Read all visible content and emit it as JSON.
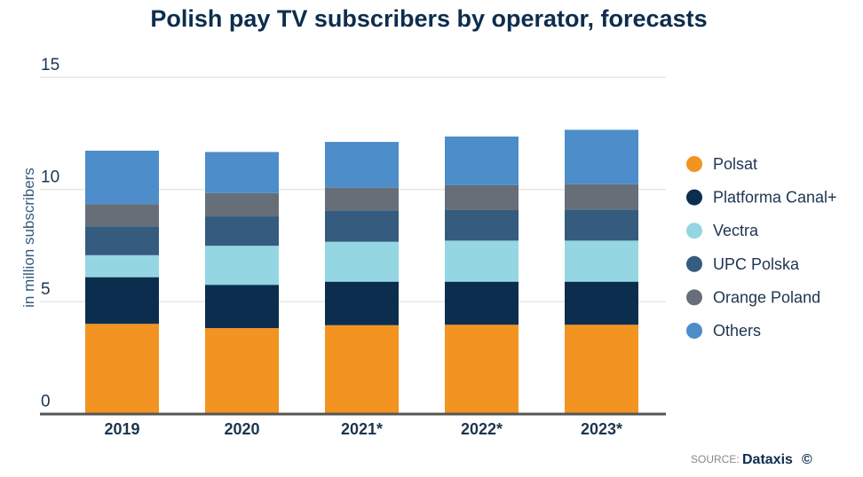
{
  "chart_data": {
    "type": "bar",
    "stacked": true,
    "title": "Polish pay TV subscribers by operator, forecasts",
    "xlabel": "",
    "ylabel": "in million subscribers",
    "ylim": [
      0,
      15
    ],
    "yticks": [
      "0",
      "5",
      "10",
      "15"
    ],
    "categories": [
      "2019",
      "2020",
      "2021*",
      "2022*",
      "2023*"
    ],
    "series": [
      {
        "name": "Polsat",
        "color": "#F39322",
        "values": [
          4.01,
          3.82,
          3.95,
          3.97,
          3.97
        ]
      },
      {
        "name": "Platforma Canal+",
        "color": "#0B2E4F",
        "values": [
          2.08,
          1.93,
          1.94,
          1.92,
          1.92
        ]
      },
      {
        "name": "Vectra",
        "color": "#94D6E2",
        "values": [
          0.98,
          1.74,
          1.78,
          1.83,
          1.83
        ]
      },
      {
        "name": "UPC Polska",
        "color": "#355B7E",
        "values": [
          1.29,
          1.31,
          1.4,
          1.36,
          1.39
        ]
      },
      {
        "name": "Orange Poland",
        "color": "#666E78",
        "values": [
          0.99,
          1.04,
          1.01,
          1.11,
          1.12
        ]
      },
      {
        "name": "Others",
        "color": "#4C8DCA",
        "values": [
          2.38,
          1.83,
          2.04,
          2.17,
          2.43
        ]
      }
    ],
    "grid": true,
    "legend_position": "right"
  },
  "source": {
    "label": "SOURCE:",
    "name": "Dataxis",
    "mark": "©"
  }
}
